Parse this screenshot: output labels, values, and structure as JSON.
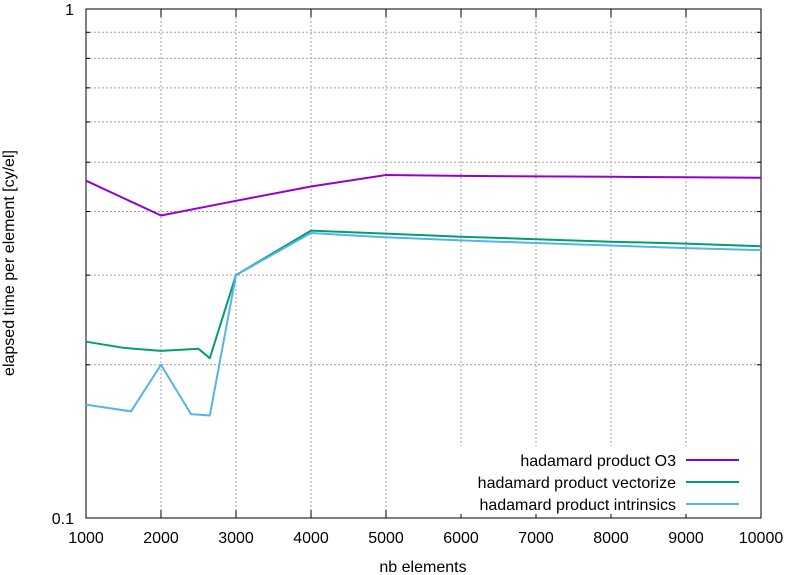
{
  "chart_data": {
    "type": "line",
    "xlabel": "nb elements",
    "ylabel": "elapsed time per element [cy/el]",
    "xlim": [
      1000,
      10000
    ],
    "ylim": [
      0.1,
      1
    ],
    "yscale": "log",
    "grid": true,
    "legend_position": "bottom-right",
    "x_ticks": [
      1000,
      2000,
      3000,
      4000,
      5000,
      6000,
      7000,
      8000,
      9000,
      10000
    ],
    "x_tick_labels": [
      "1000",
      "2000",
      "3000",
      "4000",
      "5000",
      "6000",
      "7000",
      "8000",
      "9000",
      "10000"
    ],
    "y_major_ticks": [
      0.1,
      1
    ],
    "y_major_tick_labels": [
      "0.1",
      "1"
    ],
    "y_minor_ticks": [
      0.2,
      0.3,
      0.4,
      0.5,
      0.6,
      0.7,
      0.8,
      0.9
    ],
    "series": [
      {
        "name": "hadamard product O3",
        "color": "#9400d3",
        "x": [
          1000,
          2000,
          3000,
          4000,
          5000,
          6000,
          7000,
          8000,
          9000,
          10000
        ],
        "y": [
          0.46,
          0.393,
          0.42,
          0.448,
          0.472,
          0.47,
          0.469,
          0.468,
          0.467,
          0.466
        ]
      },
      {
        "name": "hadamard product vectorize",
        "color": "#009e73",
        "x": [
          1000,
          1500,
          2000,
          2500,
          2650,
          3000,
          4000,
          5000,
          6000,
          7000,
          8000,
          9000,
          10000
        ],
        "y": [
          0.222,
          0.216,
          0.213,
          0.215,
          0.206,
          0.3,
          0.367,
          0.362,
          0.357,
          0.353,
          0.349,
          0.346,
          0.342
        ]
      },
      {
        "name": "hadamard product intrinsics",
        "color": "#56b4e9",
        "x": [
          1000,
          1600,
          2000,
          2400,
          2650,
          3000,
          4000,
          5000,
          6000,
          7000,
          8000,
          9000,
          10000
        ],
        "y": [
          0.167,
          0.162,
          0.2,
          0.16,
          0.159,
          0.3,
          0.363,
          0.356,
          0.351,
          0.347,
          0.343,
          0.339,
          0.336
        ]
      }
    ]
  }
}
